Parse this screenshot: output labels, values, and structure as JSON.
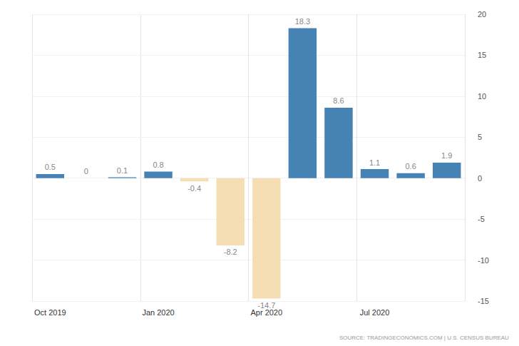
{
  "chart_data": {
    "type": "bar",
    "categories": [
      "Oct 2019",
      null,
      null,
      "Jan 2020",
      null,
      null,
      "Apr 2020",
      null,
      null,
      "Jul 2020",
      null,
      null
    ],
    "values": [
      0.5,
      0,
      0.1,
      0.8,
      -0.4,
      -8.2,
      -14.7,
      18.3,
      8.6,
      1.1,
      0.6,
      1.9
    ],
    "colors": [
      "#4682b4",
      "#4682b4",
      "#4682b4",
      "#4682b4",
      "#f5deb3",
      "#f5deb3",
      "#f5deb3",
      "#4682b4",
      "#4682b4",
      "#4682b4",
      "#4682b4",
      "#4682b4"
    ],
    "ylim": [
      -15,
      20
    ],
    "yticks": [
      -15,
      -10,
      -5,
      0,
      5,
      10,
      15,
      20
    ],
    "grid": true,
    "data_labels": true,
    "source": "SOURCE: TRADINGECONOMICS.COM | U.S. CENSUS BUREAU"
  }
}
